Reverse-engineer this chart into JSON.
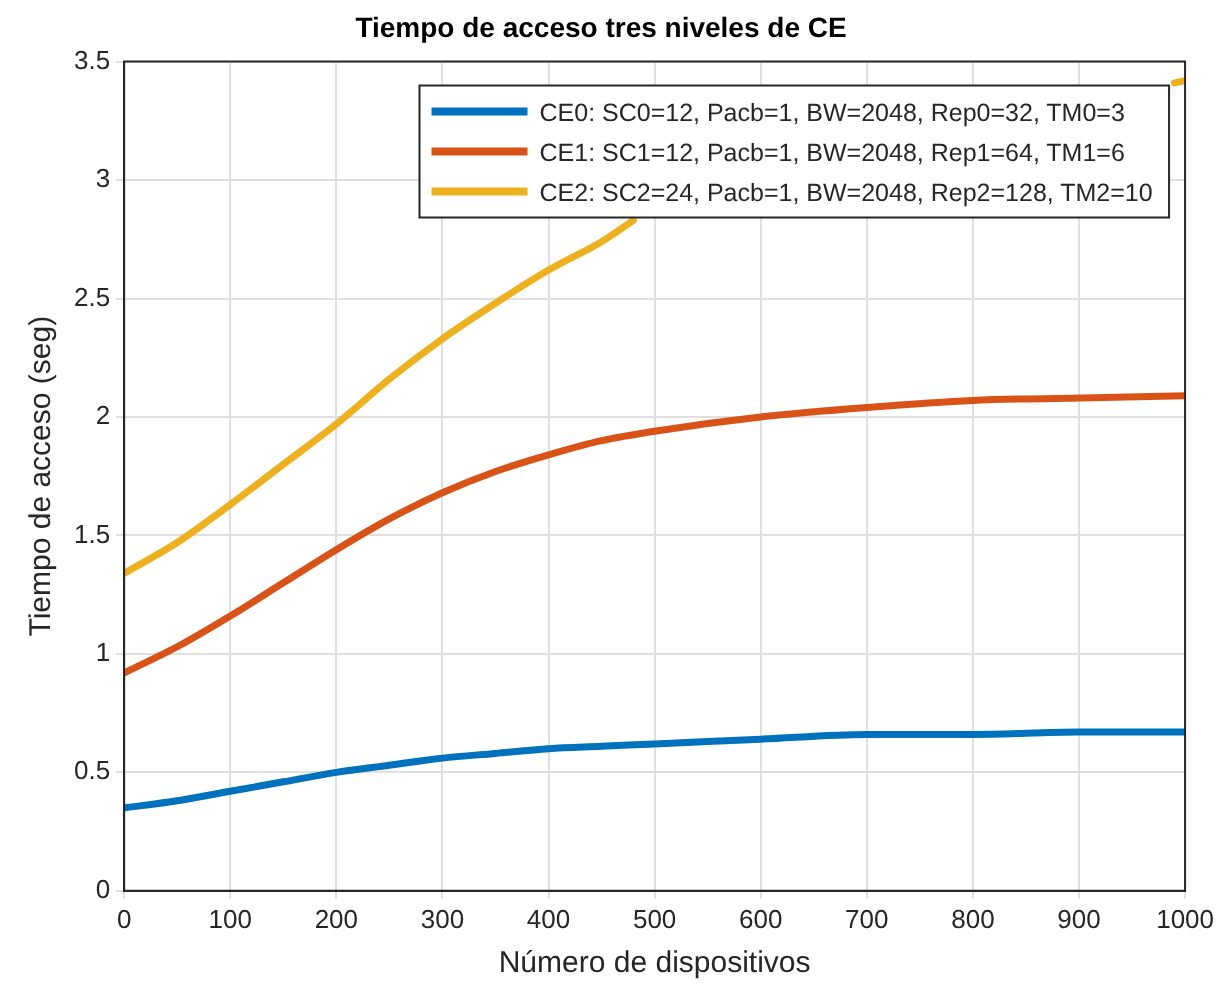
{
  "chart_data": {
    "type": "line",
    "title": "Tiempo de acceso tres niveles de CE",
    "xlabel": "Número de dispositivos",
    "ylabel": "Tiempo de acceso (seg)",
    "xlim": [
      0,
      1000
    ],
    "xticks": [
      0,
      100,
      200,
      300,
      400,
      500,
      600,
      700,
      800,
      900,
      1000
    ],
    "ylim": [
      0,
      3.5
    ],
    "yticks": [
      0,
      0.5,
      1,
      1.5,
      2,
      2.5,
      3,
      3.5
    ],
    "grid": true,
    "legend": "top right",
    "marker": "none",
    "line_style": "solid",
    "series": [
      {
        "name": "CE0: SC0=12, Pacb=1, BW=2048, Rep0=32, TM0=3",
        "color": "#0072bd",
        "x": [
          0,
          50,
          100,
          150,
          200,
          250,
          300,
          350,
          400,
          450,
          500,
          600,
          700,
          800,
          900,
          1000
        ],
        "values": [
          0.35,
          0.38,
          0.42,
          0.46,
          0.5,
          0.53,
          0.56,
          0.58,
          0.6,
          0.61,
          0.62,
          0.64,
          0.66,
          0.66,
          0.67,
          0.67
        ]
      },
      {
        "name": "CE1: SC1=12, Pacb=1, BW=2048, Rep1=64, TM1=6",
        "color": "#d95319",
        "x": [
          0,
          50,
          100,
          150,
          200,
          250,
          300,
          350,
          400,
          450,
          500,
          600,
          700,
          800,
          900,
          1000
        ],
        "values": [
          0.92,
          1.03,
          1.16,
          1.3,
          1.44,
          1.57,
          1.68,
          1.77,
          1.84,
          1.9,
          1.94,
          2,
          2.04,
          2.07,
          2.08,
          2.09
        ]
      },
      {
        "name": "CE2: SC2=24, Pacb=1, BW=2048, Rep2=128, TM2=10",
        "color": "#edb120",
        "x": [
          0,
          50,
          100,
          150,
          200,
          250,
          300,
          350,
          400,
          450,
          480,
          700,
          990,
          1000
        ],
        "values": [
          1.34,
          1.47,
          1.63,
          1.8,
          1.97,
          2.16,
          2.33,
          2.48,
          2.62,
          2.74,
          2.83,
          null,
          3.41,
          3.42
        ]
      }
    ]
  }
}
